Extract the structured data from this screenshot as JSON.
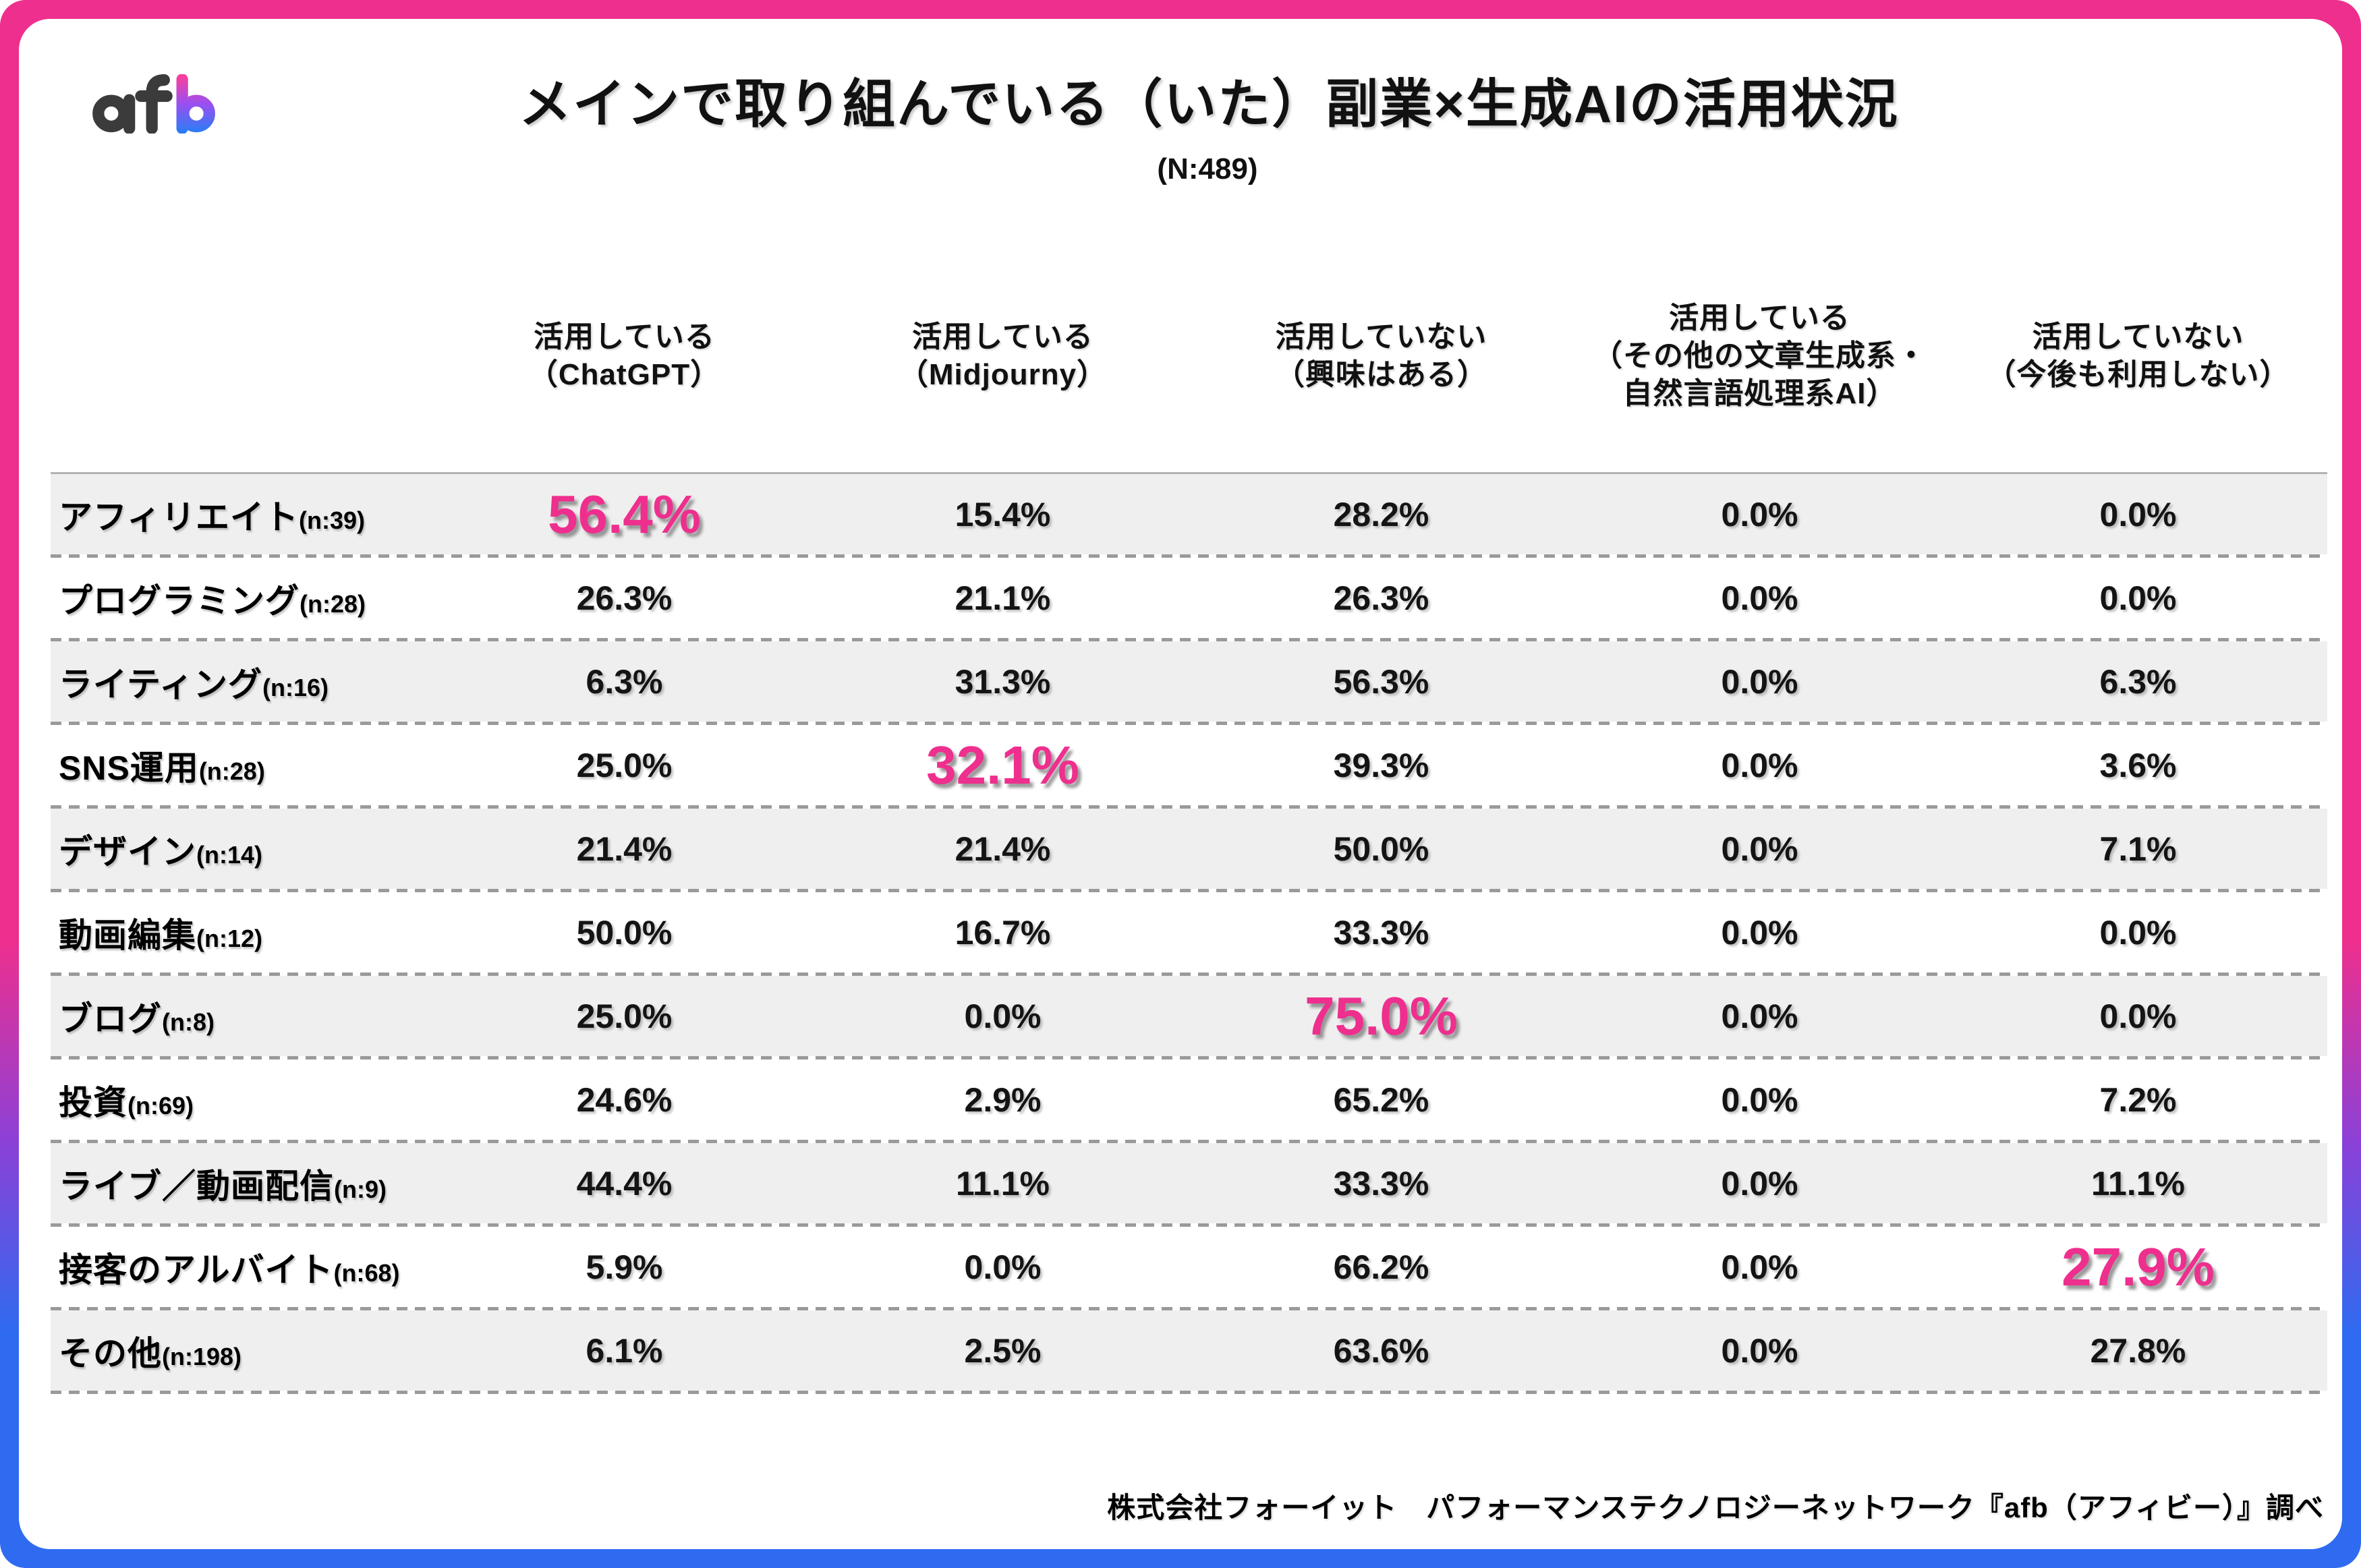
{
  "logo": {
    "text": "afb"
  },
  "title": "メインで取り組んでいる（いた）副業×生成AIの活用状況",
  "subtitle": "(N:489)",
  "columns": [
    [
      "活用している",
      "（ChatGPT）"
    ],
    [
      "活用している",
      "（Midjourny）"
    ],
    [
      "活用していない",
      "（興味はある）"
    ],
    [
      "活用している",
      "（その他の文章生成系・",
      "自然言語処理系AI）"
    ],
    [
      "活用していない",
      "（今後も利用しない）"
    ]
  ],
  "rows": [
    {
      "label": "アフィリエイト",
      "n": "(n:39)",
      "values": [
        "56.4%",
        "15.4%",
        "28.2%",
        "0.0%",
        "0.0%"
      ],
      "highlight": 0
    },
    {
      "label": "プログラミング",
      "n": "(n:28)",
      "values": [
        "26.3%",
        "21.1%",
        "26.3%",
        "0.0%",
        "0.0%"
      ],
      "highlight": null
    },
    {
      "label": "ライティング",
      "n": "(n:16)",
      "values": [
        "6.3%",
        "31.3%",
        "56.3%",
        "0.0%",
        "6.3%"
      ],
      "highlight": null
    },
    {
      "label": "SNS運用",
      "n": "(n:28)",
      "values": [
        "25.0%",
        "32.1%",
        "39.3%",
        "0.0%",
        "3.6%"
      ],
      "highlight": 1
    },
    {
      "label": "デザイン",
      "n": "(n:14)",
      "values": [
        "21.4%",
        "21.4%",
        "50.0%",
        "0.0%",
        "7.1%"
      ],
      "highlight": null
    },
    {
      "label": "動画編集",
      "n": "(n:12)",
      "values": [
        "50.0%",
        "16.7%",
        "33.3%",
        "0.0%",
        "0.0%"
      ],
      "highlight": null
    },
    {
      "label": "ブログ",
      "n": "(n:8)",
      "values": [
        "25.0%",
        "0.0%",
        "75.0%",
        "0.0%",
        "0.0%"
      ],
      "highlight": 2
    },
    {
      "label": "投資",
      "n": "(n:69)",
      "values": [
        "24.6%",
        "2.9%",
        "65.2%",
        "0.0%",
        "7.2%"
      ],
      "highlight": null
    },
    {
      "label": "ライブ／動画配信",
      "n": "(n:9)",
      "values": [
        "44.4%",
        "11.1%",
        "33.3%",
        "0.0%",
        "11.1%"
      ],
      "highlight": null
    },
    {
      "label": "接客のアルバイト",
      "n": "(n:68)",
      "values": [
        "5.9%",
        "0.0%",
        "66.2%",
        "0.0%",
        "27.9%"
      ],
      "highlight": 4
    },
    {
      "label": "その他",
      "n": "(n:198)",
      "values": [
        "6.1%",
        "2.5%",
        "63.6%",
        "0.0%",
        "27.8%"
      ],
      "highlight": null
    }
  ],
  "footer": "株式会社フォーイット　パフォーマンステクノロジーネットワーク『afb（アフィビー）』調べ",
  "colors": {
    "accent_pink": "#ee2f8e",
    "accent_blue": "#2f6bf0"
  },
  "chart_data": {
    "type": "table",
    "title": "メインで取り組んでいる（いた）副業×生成AIの活用状況",
    "sample_size": "N:489",
    "categories": [
      "アフィリエイト (n:39)",
      "プログラミング (n:28)",
      "ライティング (n:16)",
      "SNS運用 (n:28)",
      "デザイン (n:14)",
      "動画編集 (n:12)",
      "ブログ (n:8)",
      "投資 (n:69)",
      "ライブ／動画配信 (n:9)",
      "接客のアルバイト (n:68)",
      "その他 (n:198)"
    ],
    "series": [
      {
        "name": "活用している（ChatGPT）",
        "values": [
          56.4,
          26.3,
          6.3,
          25.0,
          21.4,
          50.0,
          25.0,
          24.6,
          44.4,
          5.9,
          6.1
        ]
      },
      {
        "name": "活用している（Midjourny）",
        "values": [
          15.4,
          21.1,
          31.3,
          32.1,
          21.4,
          16.7,
          0.0,
          2.9,
          11.1,
          0.0,
          2.5
        ]
      },
      {
        "name": "活用していない（興味はある）",
        "values": [
          28.2,
          26.3,
          56.3,
          39.3,
          50.0,
          33.3,
          75.0,
          65.2,
          33.3,
          66.2,
          63.6
        ]
      },
      {
        "name": "活用している（その他の文章生成系・自然言語処理系AI）",
        "values": [
          0.0,
          0.0,
          0.0,
          0.0,
          0.0,
          0.0,
          0.0,
          0.0,
          0.0,
          0.0,
          0.0
        ]
      },
      {
        "name": "活用していない（今後も利用しない）",
        "values": [
          0.0,
          0.0,
          6.3,
          3.6,
          7.1,
          0.0,
          0.0,
          7.2,
          11.1,
          27.9,
          27.8
        ]
      }
    ]
  }
}
